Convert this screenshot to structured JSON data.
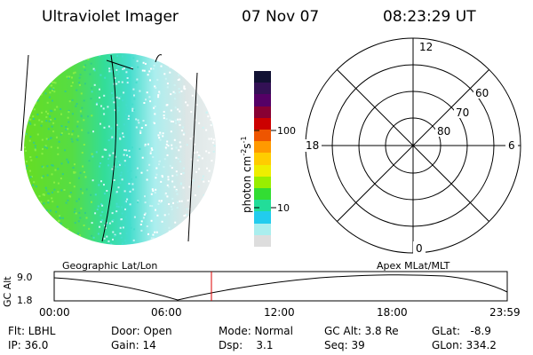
{
  "header": {
    "title": "Ultraviolet Imager",
    "date": "07 Nov 07",
    "time": "08:23:29 UT"
  },
  "colorbar": {
    "unit_label": "photon cm",
    "unit_exp1": "-2",
    "unit_mid": "s",
    "unit_exp2": "-1",
    "ticks": [
      "100",
      "10"
    ],
    "colors": [
      "#111133",
      "#331155",
      "#550066",
      "#880033",
      "#cc0000",
      "#ee5500",
      "#ff9900",
      "#ffcc00",
      "#eeee00",
      "#99ee00",
      "#33dd33",
      "#22dd99",
      "#22ccee",
      "#aaeeee",
      "#dddddd"
    ]
  },
  "polar_plot": {
    "mlt_labels": [
      "12",
      "18",
      "6",
      "0"
    ],
    "mlat_labels": [
      "60",
      "70",
      "80"
    ]
  },
  "labels": {
    "left": "Geographic Lat/Lon",
    "right": "Apex MLat/MLT"
  },
  "altitude_plot": {
    "axis_label": "GC Alt",
    "y_ticks": [
      "9.0",
      "1.8"
    ],
    "x_ticks": [
      "00:00",
      "06:00",
      "12:00",
      "18:00",
      "23:59"
    ],
    "marker_color": "#dd0000"
  },
  "footer": {
    "flt": "Flt: LBHL",
    "ip": "IP: 36.0",
    "door": "Door: Open",
    "gain": "Gain: 14",
    "mode": "Mode: Normal",
    "dsp": "Dsp:    3.1",
    "gcalt": "GC Alt: 3.8 Re",
    "seq": "Seq: 39",
    "glat": "GLat:   -8.9",
    "glon": "GLon: 334.2"
  }
}
